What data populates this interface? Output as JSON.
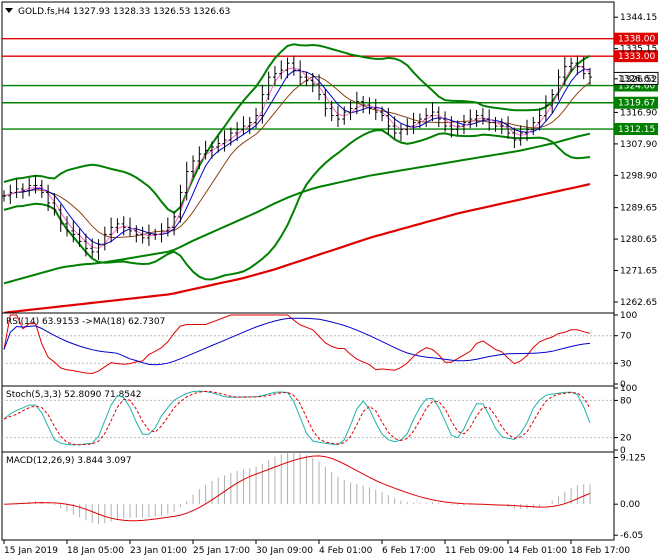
{
  "chart_data": {
    "type": "line",
    "title": "GOLD.fs,H4  1327.93 1328.33 1326.53 1326.63",
    "main": {
      "y_ticks": [
        "1344.15",
        "1335.15",
        "1326.52",
        "1316.90",
        "1307.90",
        "1298.90",
        "1289.65",
        "1280.65",
        "1271.65",
        "1262.65"
      ],
      "y_tick_values": [
        1344.15,
        1335.15,
        1326.52,
        1316.9,
        1307.9,
        1298.9,
        1289.65,
        1280.65,
        1271.65,
        1262.65
      ],
      "ylim": [
        1259.5,
        1348.5
      ],
      "horizontal_levels": [
        {
          "value": 1338.0,
          "label": "1338.00",
          "color": "#e00000"
        },
        {
          "value": 1333.0,
          "label": "1333.00",
          "color": "#e00000"
        },
        {
          "value": 1324.6,
          "label": "1324.60",
          "color": "#008000"
        },
        {
          "value": 1319.67,
          "label": "1319.67",
          "color": "#008000"
        },
        {
          "value": 1312.15,
          "label": "1312.15",
          "color": "#008000"
        }
      ],
      "price_tag": {
        "value": 1326.63,
        "label": "1326.63"
      },
      "close": [
        1293,
        1294,
        1295,
        1294.5,
        1296,
        1296,
        1294,
        1291,
        1289,
        1285,
        1283,
        1282,
        1280,
        1278,
        1277,
        1279,
        1282,
        1284,
        1285,
        1284,
        1283,
        1282,
        1281,
        1282,
        1282,
        1283,
        1284,
        1287,
        1294,
        1300,
        1303,
        1305,
        1306,
        1307,
        1308,
        1309,
        1311,
        1312,
        1313,
        1314,
        1316,
        1322,
        1327,
        1328,
        1329,
        1331,
        1329,
        1327,
        1326,
        1325,
        1322,
        1318,
        1316,
        1315,
        1317,
        1318,
        1320,
        1319,
        1318,
        1317,
        1316,
        1313,
        1311,
        1312,
        1313,
        1314,
        1315,
        1316,
        1317,
        1315,
        1313,
        1312,
        1313,
        1314,
        1315,
        1316,
        1315,
        1314,
        1313,
        1313,
        1311,
        1309,
        1311,
        1312,
        1314,
        1316,
        1319,
        1322,
        1327,
        1330,
        1331,
        1330,
        1328,
        1327
      ],
      "close_color": "#000000",
      "ma_fast": {
        "color": "#ff66cc",
        "period": "fast"
      },
      "ma_mid": {
        "color": "#0000cc",
        "period": "mid"
      },
      "ma_slow": {
        "color": "#8b4513",
        "period": "slow"
      },
      "bollinger": {
        "color": "#008000"
      },
      "ma_long_green": [
        1268.0,
        1268.5,
        1269.0,
        1269.5,
        1270.0,
        1270.5,
        1271.0,
        1271.5,
        1272.0,
        1272.5,
        1272.8,
        1273.0,
        1273.3,
        1273.5,
        1273.6,
        1273.8,
        1274.0,
        1274.3,
        1274.6,
        1274.9,
        1275.2,
        1275.5,
        1275.8,
        1276.1,
        1276.4,
        1276.7,
        1277.0,
        1277.6,
        1278.4,
        1279.3,
        1280.2,
        1281.0,
        1281.8,
        1282.6,
        1283.4,
        1284.2,
        1285.0,
        1285.8,
        1286.6,
        1287.4,
        1288.2,
        1289.1,
        1290.0,
        1290.9,
        1291.7,
        1292.5,
        1293.2,
        1293.9,
        1294.5,
        1295.1,
        1295.6,
        1296.0,
        1296.4,
        1296.8,
        1297.2,
        1297.6,
        1298.0,
        1298.4,
        1298.8,
        1299.1,
        1299.4,
        1299.7,
        1300.0,
        1300.3,
        1300.6,
        1300.9,
        1301.2,
        1301.5,
        1301.8,
        1302.1,
        1302.4,
        1302.7,
        1303.0,
        1303.3,
        1303.6,
        1303.9,
        1304.2,
        1304.5,
        1304.8,
        1305.1,
        1305.4,
        1305.7,
        1306.0,
        1306.4,
        1306.8,
        1307.2,
        1307.6,
        1308.0,
        1308.5,
        1309.0,
        1309.5,
        1310.0,
        1310.4,
        1310.8
      ],
      "ma_long_red": [
        1259.5,
        1259.8,
        1260.0,
        1260.2,
        1260.4,
        1260.6,
        1260.8,
        1261.0,
        1261.2,
        1261.4,
        1261.6,
        1261.8,
        1262.0,
        1262.2,
        1262.4,
        1262.6,
        1262.8,
        1263.0,
        1263.2,
        1263.4,
        1263.6,
        1263.8,
        1264.0,
        1264.2,
        1264.4,
        1264.6,
        1264.8,
        1265.1,
        1265.5,
        1265.9,
        1266.3,
        1266.7,
        1267.1,
        1267.5,
        1267.9,
        1268.3,
        1268.7,
        1269.1,
        1269.5,
        1270.0,
        1270.5,
        1271.0,
        1271.5,
        1272.0,
        1272.6,
        1273.2,
        1273.8,
        1274.4,
        1275.0,
        1275.6,
        1276.2,
        1276.8,
        1277.4,
        1278.0,
        1278.6,
        1279.2,
        1279.8,
        1280.4,
        1281.0,
        1281.5,
        1282.0,
        1282.5,
        1283.0,
        1283.5,
        1284.0,
        1284.5,
        1285.0,
        1285.5,
        1286.0,
        1286.5,
        1287.0,
        1287.5,
        1288.0,
        1288.4,
        1288.8,
        1289.2,
        1289.6,
        1290.0,
        1290.4,
        1290.8,
        1291.2,
        1291.6,
        1292.0,
        1292.4,
        1292.8,
        1293.2,
        1293.6,
        1294.0,
        1294.4,
        1294.8,
        1295.2,
        1295.6,
        1296.0,
        1296.4
      ]
    },
    "rsi": {
      "title": "RSI(14) 63.9153  ->MA(18) 62.7307",
      "y_ticks": [
        "100",
        "70",
        "30",
        "0"
      ],
      "ylim": [
        0,
        100
      ],
      "levels": [
        70,
        30
      ],
      "rsi_color": "#e00000",
      "ma_color": "#0000cc"
    },
    "stoch": {
      "title": "Stoch(5,3,3) 52.8090 71.8542",
      "y_ticks": [
        "100",
        "80",
        "20",
        "0"
      ],
      "ylim": [
        0,
        100
      ],
      "levels": [
        80,
        20
      ],
      "main_color": "#20b2aa",
      "signal_color": "#e00000"
    },
    "macd": {
      "title": "MACD(12,26,9) 3.844 3.097",
      "y_ticks": [
        "9.125",
        "0.00",
        "-6.05"
      ],
      "ylim": [
        -6.6,
        9.8
      ],
      "hist_color": "#b0b0b0",
      "signal_color": "#e00000"
    },
    "x_labels": [
      "15 Jan 2019",
      "18 Jan 05:00",
      "23 Jan 01:00",
      "25 Jan 17:00",
      "30 Jan 09:00",
      "4 Feb 01:00",
      "6 Feb 17:00",
      "11 Feb 09:00",
      "14 Feb 01:00",
      "18 Feb 17:00"
    ]
  }
}
